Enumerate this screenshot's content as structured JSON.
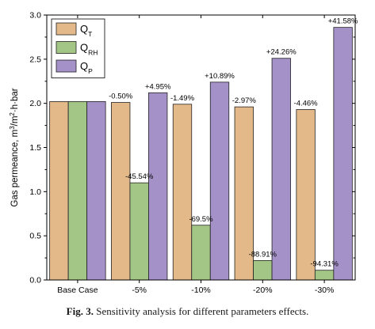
{
  "chart_data": {
    "type": "bar",
    "categories": [
      "Base Case",
      "-5%",
      "-10%",
      "-20%",
      "-30%"
    ],
    "ylabel": {
      "text": "Gas permeance, m",
      "sup1": "3",
      "mid": "/m",
      "sup2": "2",
      "tail": "·h·bar"
    },
    "ylim": [
      0,
      3.0
    ],
    "yticks": [
      "0.0",
      "0.5",
      "1.0",
      "1.5",
      "2.0",
      "2.5",
      "3.0"
    ],
    "legend_position": "top-left",
    "series": [
      {
        "name": "Q",
        "subscript": "T",
        "color": "#e3b98a",
        "values": [
          2.02,
          2.01,
          1.99,
          1.96,
          1.93
        ],
        "labels": [
          "",
          "-0.50%",
          "-1.49%",
          "-2.97%",
          "-4.46%"
        ]
      },
      {
        "name": "Q",
        "subscript": "RH",
        "color": "#a3c585",
        "values": [
          2.02,
          1.1,
          0.62,
          0.22,
          0.11
        ],
        "labels": [
          "",
          "-45.54%",
          "-69.5%",
          "-88.91%",
          "-94.31%"
        ]
      },
      {
        "name": "Q",
        "subscript": "P",
        "color": "#a491c8",
        "values": [
          2.02,
          2.12,
          2.24,
          2.51,
          2.86
        ],
        "labels": [
          "",
          "+4.95%",
          "+10.89%",
          "+24.26%",
          "+41.58%"
        ]
      }
    ]
  },
  "caption": {
    "fig_label": "Fig. 3.",
    "text": "Sensitivity analysis for different parameters effects."
  }
}
